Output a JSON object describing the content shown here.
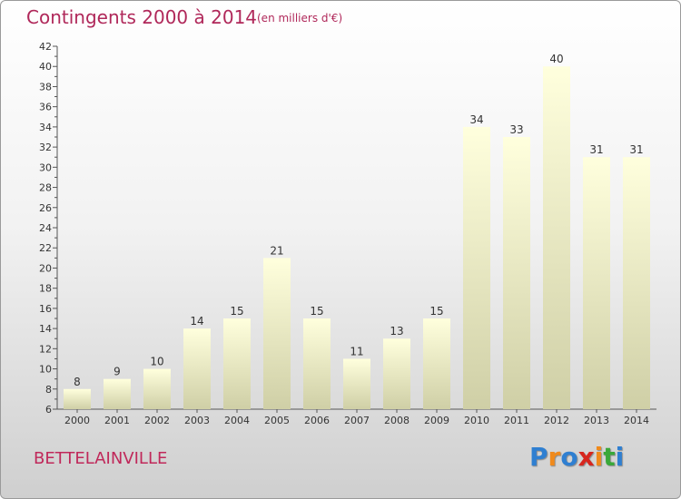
{
  "header": {
    "title": "Contingents 2000 à 2014",
    "subtitle": "(en milliers d'€)"
  },
  "footer": {
    "place": "BETTELAINVILLE",
    "logo": [
      "P",
      "r",
      "o",
      "x",
      "i",
      "t",
      "i"
    ],
    "logo_colors": [
      "#2f7fd1",
      "#f08a1c",
      "#2f7fd1",
      "#d7261e",
      "#f08a1c",
      "#3aa83a",
      "#2f7fd1"
    ]
  },
  "chart_data": {
    "type": "bar",
    "categories": [
      "2000",
      "2001",
      "2002",
      "2003",
      "2004",
      "2005",
      "2006",
      "2007",
      "2008",
      "2009",
      "2010",
      "2011",
      "2012",
      "2013",
      "2014"
    ],
    "values": [
      8,
      9,
      10,
      14,
      15,
      21,
      15,
      11,
      13,
      15,
      34,
      33,
      40,
      31,
      31
    ],
    "title": "Contingents 2000 à 2014",
    "ylim": [
      6,
      42
    ],
    "yticks": [
      6,
      8,
      10,
      12,
      14,
      16,
      18,
      20,
      22,
      24,
      26,
      28,
      30,
      32,
      34,
      36,
      38,
      40,
      42
    ],
    "grid": false,
    "colors": {
      "bar_top": "#ffffdd",
      "bar_bottom": "#cfcfa6",
      "axis": "#555555"
    }
  }
}
